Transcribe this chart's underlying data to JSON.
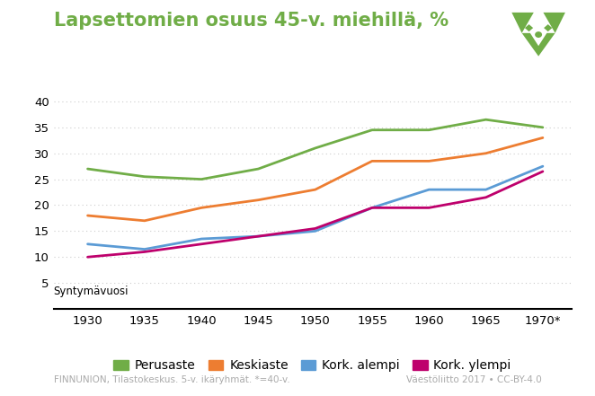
{
  "title": "Lapsettomien osuus 45-v. miehillä, %",
  "xlabel": "Syntymävuosi",
  "years": [
    1930,
    1935,
    1940,
    1945,
    1950,
    1955,
    1960,
    1965,
    1970
  ],
  "xtick_labels": [
    "1930",
    "1935",
    "1940",
    "1945",
    "1950",
    "1955",
    "1960",
    "1965",
    "1970*"
  ],
  "series": {
    "Perusaste": [
      27,
      25.5,
      25,
      27,
      31,
      34.5,
      34.5,
      36.5,
      35
    ],
    "Keskiaste": [
      18,
      17,
      19.5,
      21,
      23,
      28.5,
      28.5,
      30,
      33
    ],
    "Kork. alempi": [
      12.5,
      11.5,
      13.5,
      14,
      15,
      19.5,
      23,
      23,
      27.5
    ],
    "Kork. ylempi": [
      10,
      11,
      12.5,
      14,
      15.5,
      19.5,
      19.5,
      21.5,
      26.5
    ]
  },
  "colors": {
    "Perusaste": "#70AD47",
    "Keskiaste": "#ED7D31",
    "Kork. alempi": "#5B9BD5",
    "Kork. ylempi": "#BE006C"
  },
  "ylim": [
    0,
    42
  ],
  "yticks": [
    0,
    5,
    10,
    15,
    20,
    25,
    30,
    35,
    40
  ],
  "footer_left": "FINNUNION, Tilastokeskus. 5-v. ikäryhmät. *=40-v.",
  "footer_right": "Väestöliitto 2017 • CC-BY-4.0",
  "background_color": "#ffffff",
  "grid_color": "#cccccc",
  "title_color": "#70AD47",
  "linewidth": 2.0
}
